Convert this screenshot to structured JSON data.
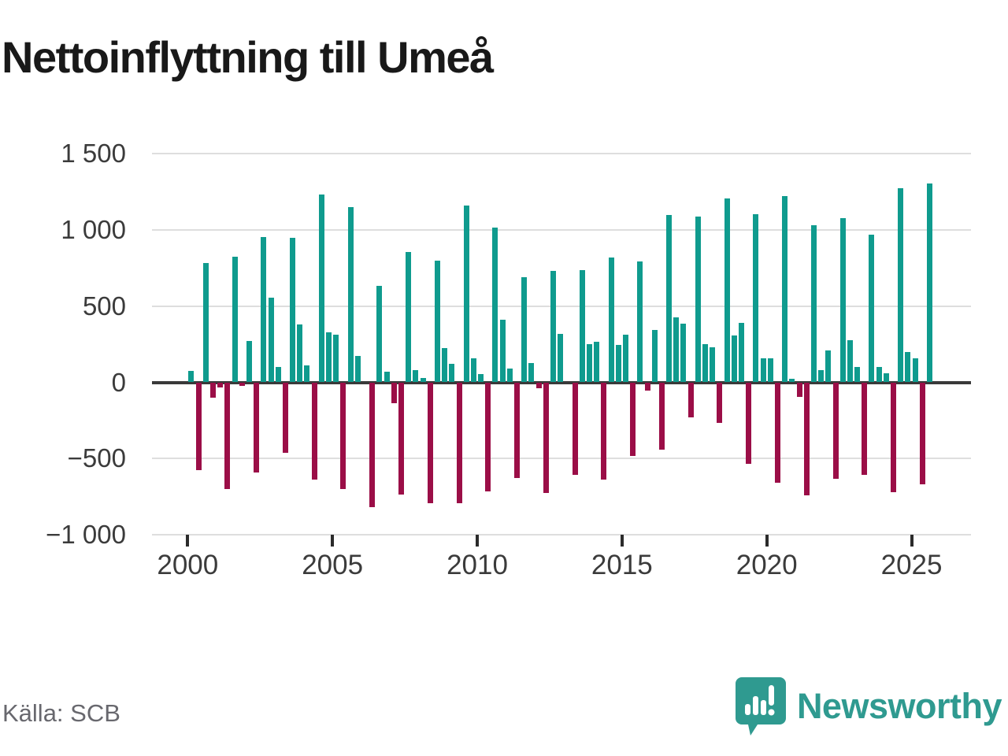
{
  "header": {
    "title": "Nettoinflyttning till Umeå"
  },
  "footer": {
    "source": "Källa: SCB",
    "brand": "Newsworthy"
  },
  "colors": {
    "positive": "#0F9B8E",
    "negative": "#9B0E47",
    "grid": "#DEDEDE",
    "zero_line": "#3A3A3A",
    "tick": "#2B2B2B",
    "axis_text": "#3B3B3B",
    "title_text": "#191919",
    "source_text": "#68686E",
    "brand_teal": "#2F9A90"
  },
  "chart_data": {
    "type": "bar",
    "title": "Nettoinflyttning till Umeå",
    "frequency": "quarterly",
    "legend_position": "none",
    "grid": "horizontal",
    "ylim": [
      -1000,
      1500
    ],
    "y_axis": {
      "tick_labels": [
        "1 500",
        "1 000",
        "500",
        "0",
        "−500",
        "−1 000"
      ],
      "tick_values": [
        1500,
        1000,
        500,
        0,
        -500,
        -1000
      ]
    },
    "x_axis": {
      "tick_labels": [
        "2000",
        "2005",
        "2010",
        "2015",
        "2020",
        "2025"
      ],
      "tick_years": [
        2000,
        2005,
        2010,
        2015,
        2020,
        2025
      ]
    },
    "quarters": [
      "2000Q1",
      "2000Q2",
      "2000Q3",
      "2000Q4",
      "2001Q1",
      "2001Q2",
      "2001Q3",
      "2001Q4",
      "2002Q1",
      "2002Q2",
      "2002Q3",
      "2002Q4",
      "2003Q1",
      "2003Q2",
      "2003Q3",
      "2003Q4",
      "2004Q1",
      "2004Q2",
      "2004Q3",
      "2004Q4",
      "2005Q1",
      "2005Q2",
      "2005Q3",
      "2005Q4",
      "2006Q1",
      "2006Q2",
      "2006Q3",
      "2006Q4",
      "2007Q1",
      "2007Q2",
      "2007Q3",
      "2007Q4",
      "2008Q1",
      "2008Q2",
      "2008Q3",
      "2008Q4",
      "2009Q1",
      "2009Q2",
      "2009Q3",
      "2009Q4",
      "2010Q1",
      "2010Q2",
      "2010Q3",
      "2010Q4",
      "2011Q1",
      "2011Q2",
      "2011Q3",
      "2011Q4",
      "2012Q1",
      "2012Q2",
      "2012Q3",
      "2012Q4",
      "2013Q1",
      "2013Q2",
      "2013Q3",
      "2013Q4",
      "2014Q1",
      "2014Q2",
      "2014Q3",
      "2014Q4",
      "2015Q1",
      "2015Q2",
      "2015Q3",
      "2015Q4",
      "2016Q1",
      "2016Q2",
      "2016Q3",
      "2016Q4",
      "2017Q1",
      "2017Q2",
      "2017Q3",
      "2017Q4",
      "2018Q1",
      "2018Q2",
      "2018Q3",
      "2018Q4",
      "2019Q1",
      "2019Q2",
      "2019Q3",
      "2019Q4",
      "2020Q1",
      "2020Q2",
      "2020Q3",
      "2020Q4",
      "2021Q1",
      "2021Q2",
      "2021Q3",
      "2021Q4",
      "2022Q1",
      "2022Q2",
      "2022Q3",
      "2022Q4",
      "2023Q1",
      "2023Q2",
      "2023Q3",
      "2023Q4",
      "2024Q1",
      "2024Q2",
      "2024Q3",
      "2024Q4",
      "2025Q1",
      "2025Q2",
      "2025Q3"
    ],
    "values": [
      75,
      -575,
      780,
      -100,
      -35,
      -700,
      825,
      -25,
      270,
      -590,
      955,
      555,
      100,
      -460,
      950,
      380,
      110,
      -640,
      1230,
      330,
      310,
      -700,
      1150,
      175,
      0,
      -820,
      635,
      70,
      -135,
      -735,
      855,
      80,
      30,
      -795,
      800,
      225,
      120,
      -795,
      1160,
      155,
      55,
      -715,
      1015,
      410,
      90,
      -630,
      690,
      125,
      -40,
      -725,
      730,
      320,
      0,
      -605,
      735,
      250,
      265,
      -640,
      820,
      245,
      310,
      -485,
      795,
      -55,
      345,
      -440,
      1100,
      425,
      385,
      -230,
      1085,
      250,
      230,
      -265,
      1205,
      305,
      390,
      -535,
      1105,
      160,
      155,
      -660,
      1220,
      25,
      -95,
      -740,
      1030,
      80,
      210,
      -635,
      1075,
      275,
      100,
      -605,
      970,
      100,
      60,
      -720,
      1275,
      200,
      160,
      -670,
      1305
    ]
  }
}
